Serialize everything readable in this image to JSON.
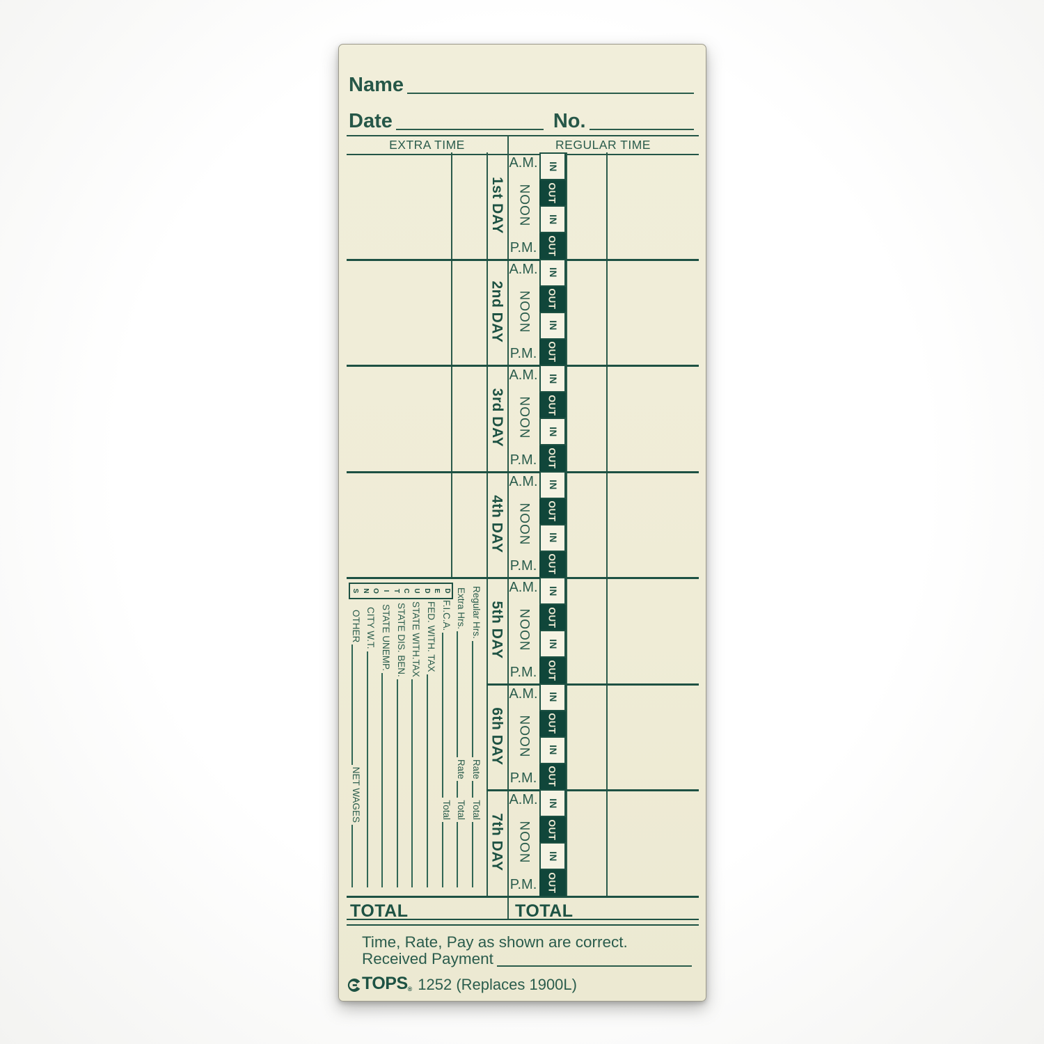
{
  "card": {
    "name_label": "Name",
    "date_label": "Date",
    "no_label": "No.",
    "columns": {
      "extra_time": "EXTRA TIME",
      "regular_time": "REGULAR TIME"
    },
    "time_labels": {
      "am": "A.M.",
      "noon": "NOON",
      "pm": "P.M."
    },
    "punch_labels": {
      "in": "IN",
      "out": "OUT"
    },
    "days": [
      {
        "label": "1st DAY"
      },
      {
        "label": "2nd DAY"
      },
      {
        "label": "3rd DAY"
      },
      {
        "label": "4th DAY"
      },
      {
        "label": "5th DAY"
      },
      {
        "label": "6th DAY"
      },
      {
        "label": "7th DAY"
      }
    ],
    "deductions": {
      "box_label": "DEDUCTIONS",
      "rows": [
        {
          "label": "Regular Hrs.",
          "rate_label": "Rate",
          "total_label": "Total"
        },
        {
          "label": "Extra Hrs.",
          "rate_label": "Rate",
          "total_label": "Total"
        },
        {
          "label": "F.I.C.A.",
          "total_label": "Total"
        },
        {
          "label": "FED. WITH. TAX"
        },
        {
          "label": "STATE WITH.TAX"
        },
        {
          "label": "STATE DIS. BEN."
        },
        {
          "label": "STATE UNEMP."
        },
        {
          "label": "CITY W.T."
        },
        {
          "label": "OTHER",
          "net_label": "NET WAGES"
        }
      ]
    },
    "total_left": "TOTAL",
    "total_right": "TOTAL",
    "certification": "Time, Rate, Pay as shown are correct.",
    "received_payment_label": "Received Payment",
    "brand": "TOPS",
    "reg_mark": "®",
    "product_info": "1252 (Replaces 1900L)",
    "colors": {
      "ink": "#2a5c4c",
      "ink_dark": "#1d5143",
      "out_cell_fill": "#10463a",
      "card_background": "#f0edd8"
    }
  }
}
